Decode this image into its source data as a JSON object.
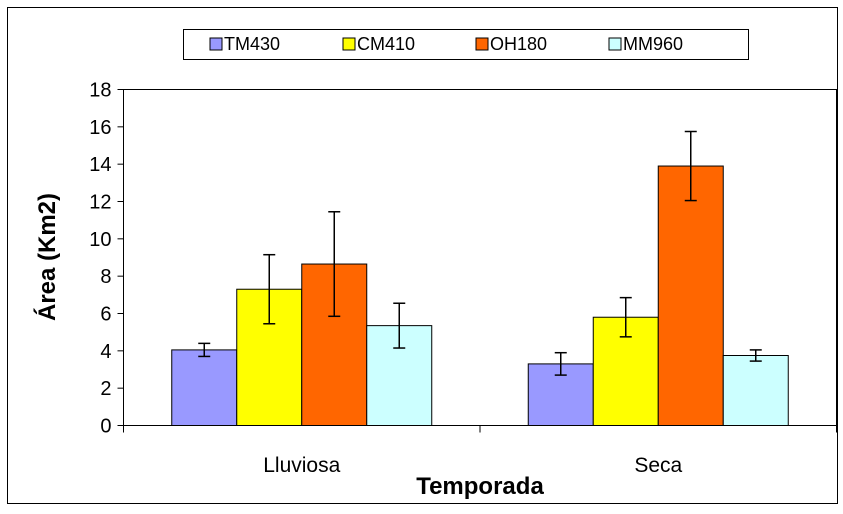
{
  "chart_data": {
    "type": "bar",
    "title": "",
    "xlabel": "Temporada",
    "ylabel": "Área (Km2)",
    "categories": [
      "Lluviosa",
      "Seca"
    ],
    "series": [
      {
        "name": "TM430",
        "values": [
          4.05,
          3.3
        ],
        "errors": [
          0.35,
          0.6
        ],
        "color": "#9999FF"
      },
      {
        "name": "CM410",
        "values": [
          7.3,
          5.8
        ],
        "errors": [
          1.85,
          1.05
        ],
        "color": "#FFFF00"
      },
      {
        "name": "OH180",
        "values": [
          8.65,
          13.9
        ],
        "errors": [
          2.8,
          1.85
        ],
        "color": "#FF6600"
      },
      {
        "name": "MM960",
        "values": [
          5.35,
          3.75
        ],
        "errors": [
          1.2,
          0.3
        ],
        "color": "#CCFFFF"
      }
    ],
    "ylim": [
      0,
      18
    ],
    "yticks": [
      0,
      2,
      4,
      6,
      8,
      10,
      12,
      14,
      16,
      18
    ],
    "grid": false,
    "legend_position": "top"
  }
}
